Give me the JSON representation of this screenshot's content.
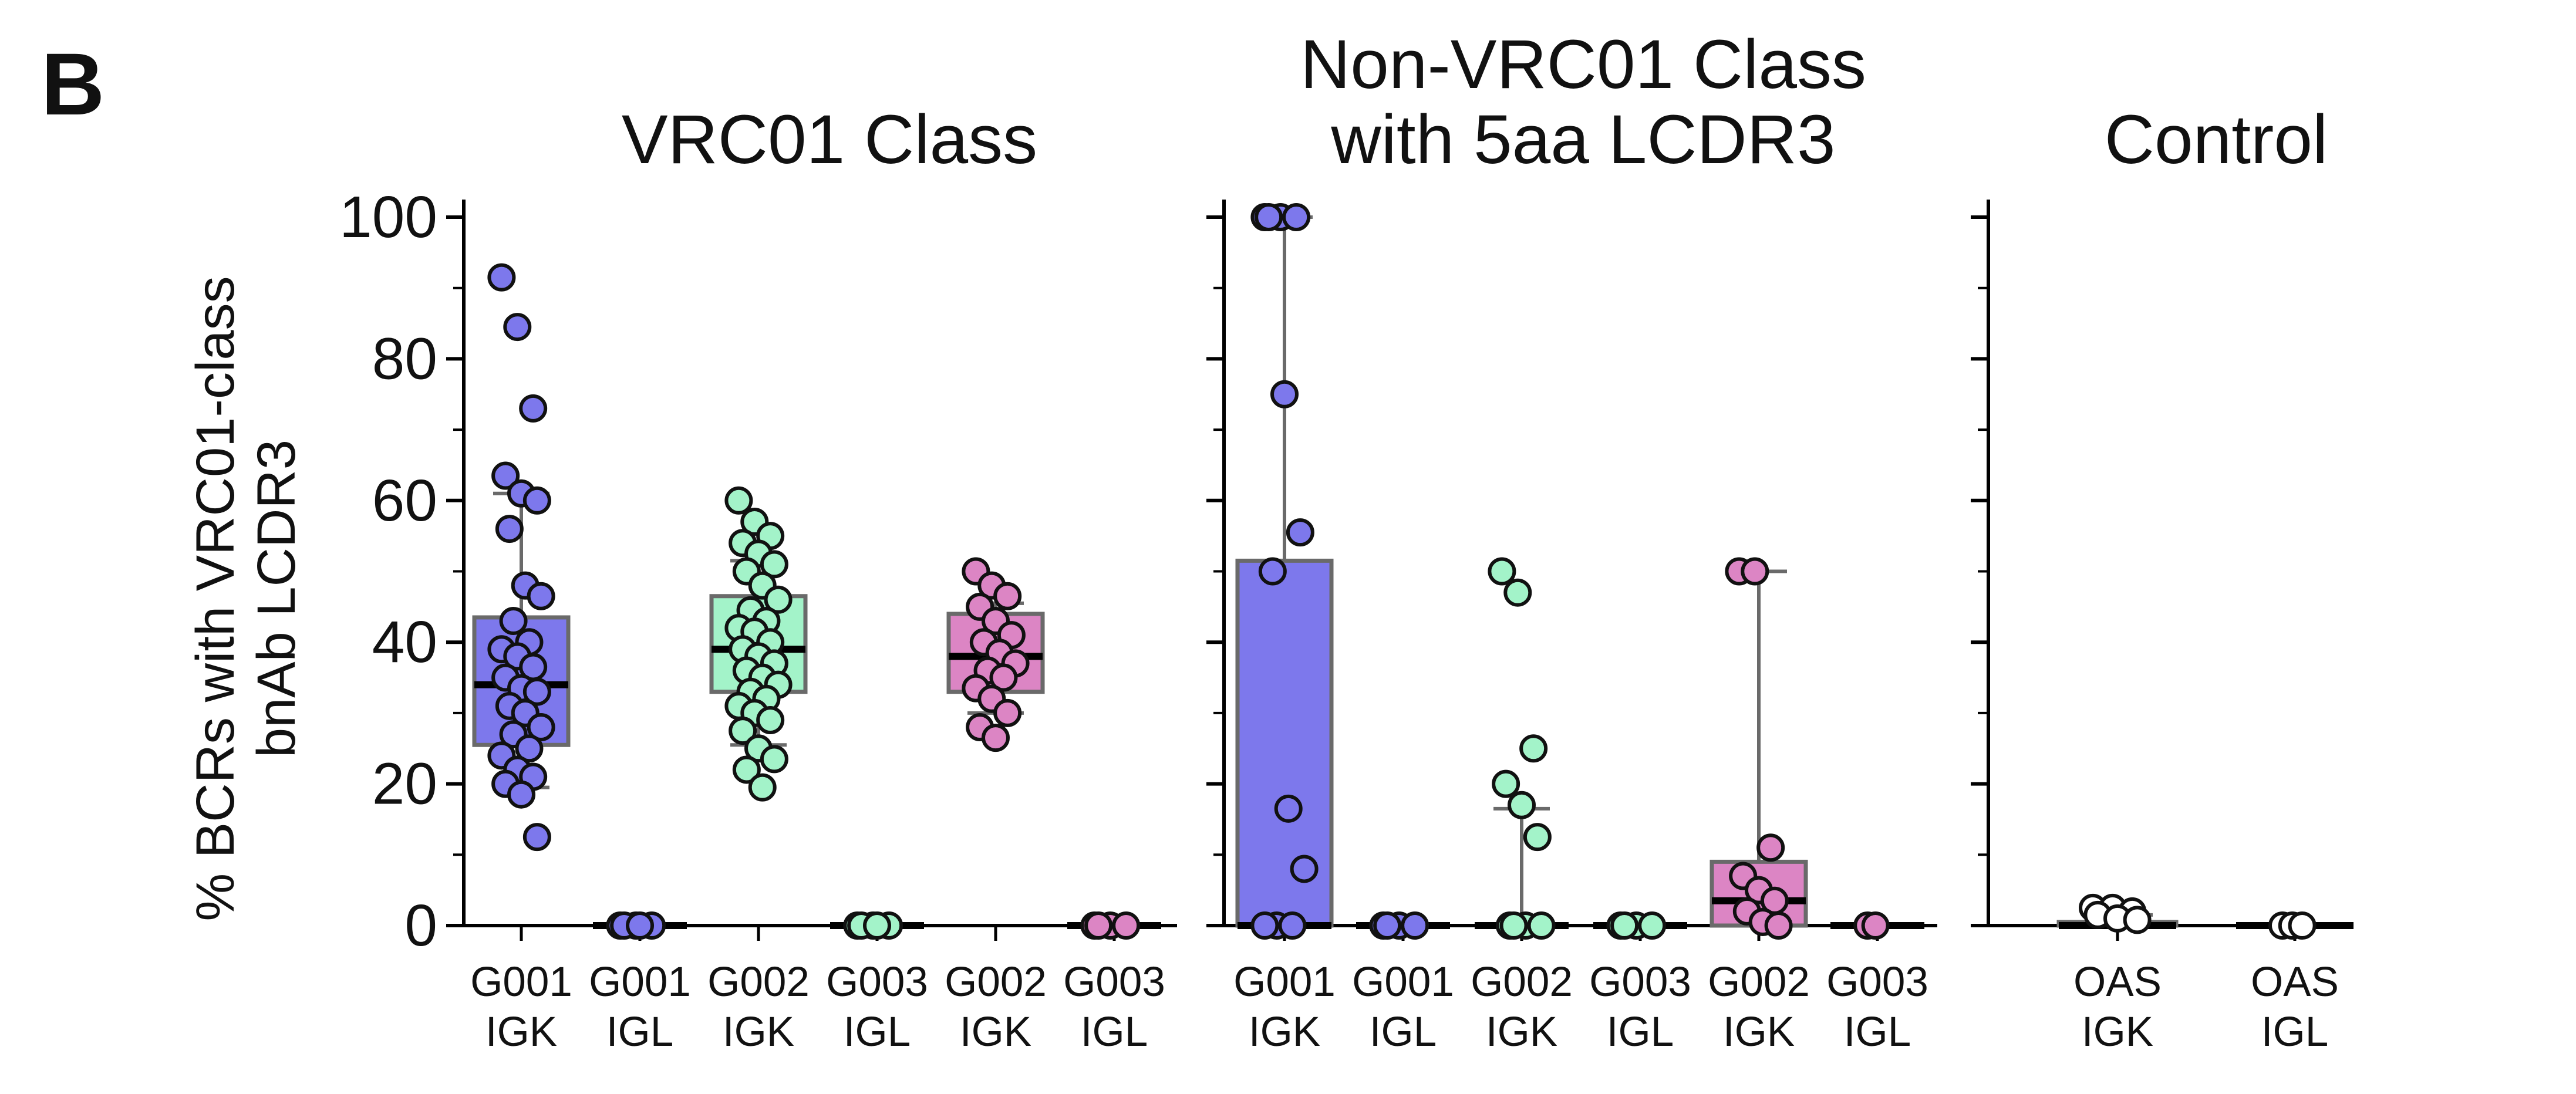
{
  "panel_label": "B",
  "colors": {
    "igk_g001": "#7d78ec",
    "igk_g002": "#a3f3c9",
    "igk_g003": "#dc85c4",
    "box_stroke": "#6a6a6a",
    "median": "#000000",
    "dot_edge": "#111111",
    "oas": "#ffffff"
  },
  "chart_data": [
    {
      "type": "box-strip",
      "title": "VRC01 Class",
      "ylabel_lines": [
        "% BCRs with VRC01-class",
        "bnAb LCDR3"
      ],
      "ylim": [
        0,
        100
      ],
      "yticks": [
        0,
        20,
        40,
        60,
        80,
        100
      ],
      "categories": [
        {
          "line1": "G001",
          "line2": "IGK",
          "color": "#7d78ec",
          "box": {
            "q1": 25.5,
            "median": 34,
            "q3": 43.5,
            "whisker_low": 19.5,
            "whisker_high": 61
          },
          "points": [
            91.5,
            84.5,
            73,
            63.5,
            61,
            60,
            56,
            48,
            46.5,
            43,
            40,
            39,
            38,
            36.5,
            35,
            33.5,
            33,
            31,
            30,
            28,
            27,
            25,
            24,
            22,
            21,
            20,
            18.5,
            12.5
          ]
        },
        {
          "line1": "G001",
          "line2": "IGL",
          "color": "#7d78ec",
          "box": {
            "q1": 0,
            "median": 0,
            "q3": 0,
            "whisker_low": 0,
            "whisker_high": 0
          },
          "points": [
            0,
            0,
            0,
            0,
            0
          ]
        },
        {
          "line1": "G002",
          "line2": "IGK",
          "color": "#a3f3c9",
          "box": {
            "q1": 33,
            "median": 39,
            "q3": 46.5,
            "whisker_low": 25.5,
            "whisker_high": 51.5
          },
          "points": [
            60,
            57,
            55,
            54,
            52.5,
            51,
            50,
            48,
            46,
            44.5,
            43,
            42,
            41.5,
            40,
            39,
            38,
            37,
            36,
            35,
            34,
            33,
            32,
            31,
            30,
            29,
            27.5,
            25,
            23.5,
            22,
            19.5
          ]
        },
        {
          "line1": "G003",
          "line2": "IGL",
          "color": "#a3f3c9",
          "box": {
            "q1": 0,
            "median": 0,
            "q3": 0,
            "whisker_low": 0,
            "whisker_high": 0
          },
          "points": [
            0,
            0,
            0,
            0,
            0
          ]
        },
        {
          "line1": "G002",
          "line2": "IGK",
          "color": "#dc85c4",
          "box": {
            "q1": 33,
            "median": 38,
            "q3": 44,
            "whisker_low": 30,
            "whisker_high": 45.5
          },
          "points": [
            50,
            48,
            46.5,
            45,
            43,
            41,
            40,
            38.5,
            37,
            36,
            35,
            33.5,
            32,
            30,
            28,
            26.5
          ]
        },
        {
          "line1": "G003",
          "line2": "IGL",
          "color": "#dc85c4",
          "box": {
            "q1": 0,
            "median": 0,
            "q3": 0,
            "whisker_low": 0,
            "whisker_high": 0
          },
          "points": [
            0,
            0,
            0,
            0
          ]
        }
      ]
    },
    {
      "type": "box-strip",
      "title_lines": [
        "Non-VRC01 Class",
        "with 5aa LCDR3"
      ],
      "ylim": [
        0,
        100
      ],
      "categories": [
        {
          "line1": "G001",
          "line2": "IGK",
          "color": "#7d78ec",
          "box": {
            "q1": 0,
            "median": 0,
            "q3": 51.5,
            "whisker_low": 0,
            "whisker_high": 100
          },
          "points": [
            100,
            100,
            100,
            100,
            75,
            55.5,
            50,
            16.5,
            8,
            0,
            0,
            0
          ]
        },
        {
          "line1": "G001",
          "line2": "IGL",
          "color": "#7d78ec",
          "box": {
            "q1": 0,
            "median": 0,
            "q3": 0,
            "whisker_low": 0,
            "whisker_high": 0
          },
          "points": [
            0,
            0,
            0,
            0
          ]
        },
        {
          "line1": "G002",
          "line2": "IGK",
          "color": "#a3f3c9",
          "box": {
            "q1": 0,
            "median": 0,
            "q3": 0,
            "whisker_low": 0,
            "whisker_high": 16.5
          },
          "points": [
            50,
            47,
            25,
            20,
            17,
            12.5,
            0,
            0,
            0,
            0
          ]
        },
        {
          "line1": "G003",
          "line2": "IGL",
          "color": "#a3f3c9",
          "box": {
            "q1": 0,
            "median": 0,
            "q3": 0,
            "whisker_low": 0,
            "whisker_high": 0
          },
          "points": [
            0,
            0,
            0,
            0
          ]
        },
        {
          "line1": "G002",
          "line2": "IGK",
          "color": "#dc85c4",
          "box": {
            "q1": 0,
            "median": 3.5,
            "q3": 9,
            "whisker_low": 0,
            "whisker_high": 50
          },
          "points": [
            50,
            50,
            11,
            7,
            5,
            3.5,
            2,
            0.5,
            0
          ]
        },
        {
          "line1": "G003",
          "line2": "IGL",
          "color": "#dc85c4",
          "box": {
            "q1": 0,
            "median": 0,
            "q3": 0,
            "whisker_low": 0,
            "whisker_high": 0
          },
          "points": [
            0,
            0
          ]
        }
      ]
    },
    {
      "type": "box-strip",
      "title": "Control",
      "ylim": [
        0,
        100
      ],
      "categories": [
        {
          "line1": "OAS",
          "line2": "IGK",
          "color": "#ffffff",
          "box": {
            "q1": 0,
            "median": 0,
            "q3": 0.5,
            "whisker_low": 0,
            "whisker_high": 1.5
          },
          "points": [
            2.5,
            2.5,
            2,
            1.5,
            1,
            0.8
          ]
        },
        {
          "line1": "OAS",
          "line2": "IGL",
          "color": "#ffffff",
          "box": {
            "q1": 0,
            "median": 0,
            "q3": 0,
            "whisker_low": 0,
            "whisker_high": 0
          },
          "points": [
            0,
            0,
            0
          ]
        }
      ]
    }
  ]
}
